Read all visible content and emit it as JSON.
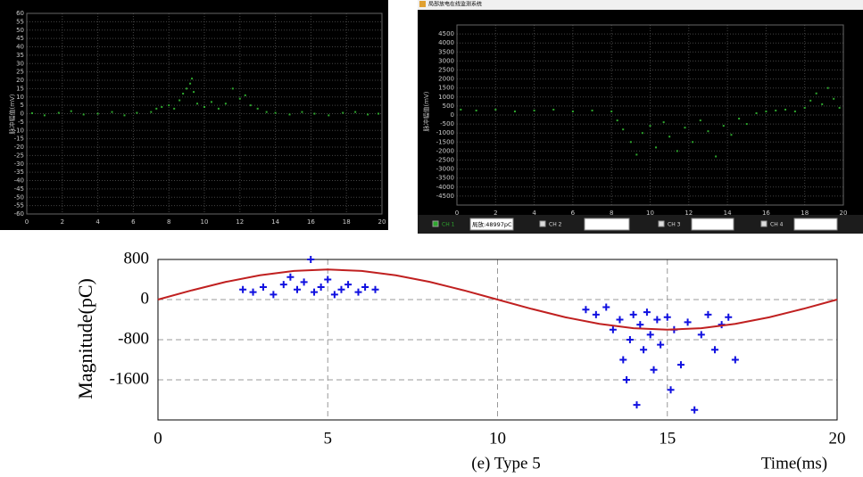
{
  "chart_data": [
    {
      "type": "scatter",
      "y_label": "脉冲幅值(mV)",
      "color": "#2ea82e",
      "grid": true,
      "xlim": [
        0,
        20
      ],
      "xticks": [
        0,
        2,
        4,
        6,
        8,
        10,
        12,
        14,
        16,
        18,
        20
      ],
      "ylim": [
        -60,
        60
      ],
      "yticks": [
        60,
        55,
        50,
        45,
        40,
        35,
        30,
        25,
        20,
        15,
        10,
        5,
        0,
        -5,
        -10,
        -15,
        -20,
        -25,
        -30,
        -35,
        -40,
        -45,
        -50,
        -55,
        -60
      ],
      "x": [
        0.3,
        1,
        1.8,
        2.5,
        3.2,
        4,
        4.8,
        5.5,
        6.2,
        7,
        7.3,
        7.6,
        8,
        8.3,
        8.6,
        8.8,
        9,
        9.2,
        9.3,
        9.4,
        9.6,
        10,
        10.4,
        10.8,
        11.2,
        11.6,
        12,
        12.3,
        12.6,
        13,
        13.5,
        14,
        14.8,
        15.5,
        16.2,
        17,
        17.8,
        18.5,
        19.2,
        19.8
      ],
      "values": [
        0.3,
        -1,
        0.5,
        1.5,
        -0.5,
        0,
        1,
        -1,
        0.5,
        1,
        3,
        4,
        5,
        3,
        8,
        12,
        15,
        18,
        21,
        13,
        6,
        4,
        7,
        3,
        6,
        15,
        9,
        11,
        5,
        3,
        1,
        0.5,
        -0.5,
        1,
        0,
        -1,
        0.5,
        1,
        -0.5,
        0
      ]
    },
    {
      "type": "scatter",
      "title": "局部放电在线监测系统",
      "y_label": "脉冲幅值(mV)",
      "color": "#2ea82e",
      "grid": true,
      "xlim": [
        0,
        20
      ],
      "xticks": [
        0,
        2,
        4,
        6,
        8,
        10,
        12,
        14,
        16,
        18,
        20
      ],
      "ylim": [
        -5000,
        5000
      ],
      "yticks": [
        4500,
        4000,
        3500,
        3000,
        2500,
        2000,
        1500,
        1000,
        500,
        0,
        -500,
        -1000,
        -1500,
        -2000,
        -2500,
        -3000,
        -3500,
        -4000,
        -4500
      ],
      "x": [
        0.2,
        1,
        2,
        3,
        4,
        5,
        6,
        7,
        8,
        8.3,
        8.6,
        9,
        9.3,
        9.6,
        10,
        10.3,
        10.7,
        11,
        11.4,
        11.8,
        12.2,
        12.6,
        13,
        13.4,
        13.8,
        14.2,
        14.6,
        15,
        15.5,
        16,
        16.5,
        17,
        17.5,
        18,
        18.3,
        18.6,
        18.9,
        19.2,
        19.5,
        19.8
      ],
      "values": [
        300,
        250,
        300,
        200,
        250,
        300,
        200,
        250,
        200,
        -300,
        -800,
        -1500,
        -2200,
        -1000,
        -600,
        -1800,
        -400,
        -1200,
        -2000,
        -700,
        -1500,
        -300,
        -900,
        -2300,
        -600,
        -1100,
        -200,
        -500,
        100,
        200,
        250,
        300,
        200,
        400,
        800,
        1200,
        600,
        1500,
        900,
        400
      ]
    },
    {
      "type": "scatter",
      "y_label": "Magnitude(pC)",
      "x_label": "Time(ms)",
      "caption": "(e) Type 5",
      "grid": true,
      "xlim": [
        0,
        20
      ],
      "xticks": [
        0,
        5,
        10,
        15,
        20
      ],
      "ylim": [
        -2400,
        800
      ],
      "yticks": [
        800,
        0,
        -800,
        -1600
      ],
      "series": [
        {
          "color": "#1010e0",
          "marker": "plus",
          "x": [
            2.5,
            2.8,
            3.1,
            3.4,
            3.7,
            3.9,
            4.1,
            4.3,
            4.5,
            4.6,
            4.8,
            5,
            5.2,
            5.4,
            5.6,
            5.9,
            6.1,
            6.4,
            12.6,
            12.9,
            13.2,
            13.4,
            13.6,
            13.7,
            13.8,
            13.9,
            14,
            14.1,
            14.2,
            14.3,
            14.4,
            14.5,
            14.6,
            14.7,
            14.8,
            15,
            15.1,
            15.2,
            15.4,
            15.6,
            15.8,
            16,
            16.2,
            16.4,
            16.6,
            16.8,
            17
          ],
          "values": [
            200,
            150,
            250,
            100,
            300,
            450,
            200,
            350,
            800,
            150,
            250,
            400,
            100,
            200,
            300,
            150,
            250,
            200,
            -200,
            -300,
            -150,
            -600,
            -400,
            -1200,
            -1600,
            -800,
            -300,
            -2100,
            -500,
            -1000,
            -250,
            -700,
            -1400,
            -400,
            -900,
            -350,
            -1800,
            -600,
            -1300,
            -450,
            -2200,
            -700,
            -300,
            -1000,
            -500,
            -350,
            -1200
          ]
        },
        {
          "color": "#c02020",
          "marker": "line",
          "x": [
            0,
            1,
            2,
            3,
            4,
            5,
            6,
            7,
            8,
            9,
            10,
            11,
            12,
            13,
            14,
            15,
            16,
            17,
            18,
            19,
            20
          ],
          "values": [
            0,
            185,
            353,
            485,
            571,
            600,
            571,
            485,
            353,
            185,
            0,
            -185,
            -353,
            -485,
            -571,
            -600,
            -571,
            -485,
            -353,
            -185,
            0
          ]
        }
      ]
    }
  ],
  "channel_bar": [
    {
      "label": "CH 1",
      "checked": true,
      "value": "局放:48997pC"
    },
    {
      "label": "CH 2"
    },
    {
      "label": "CH 3"
    },
    {
      "label": "CH 4"
    }
  ]
}
